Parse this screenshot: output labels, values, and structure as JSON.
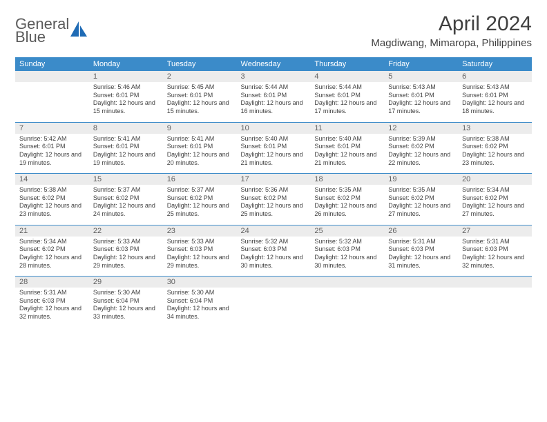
{
  "brand": {
    "line1": "General",
    "line2": "Blue"
  },
  "title": "April 2024",
  "location": "Magdiwang, Mimaropa, Philippines",
  "colors": {
    "header_bg": "#3b8bc9",
    "header_text": "#ffffff",
    "daynum_bg": "#ececec",
    "text": "#404040",
    "rule": "#3b8bc9"
  },
  "weekdays": [
    "Sunday",
    "Monday",
    "Tuesday",
    "Wednesday",
    "Thursday",
    "Friday",
    "Saturday"
  ],
  "weeks": [
    [
      {
        "n": "",
        "lines": [
          "",
          "",
          ""
        ]
      },
      {
        "n": "1",
        "lines": [
          "Sunrise: 5:46 AM",
          "Sunset: 6:01 PM",
          "Daylight: 12 hours and 15 minutes."
        ]
      },
      {
        "n": "2",
        "lines": [
          "Sunrise: 5:45 AM",
          "Sunset: 6:01 PM",
          "Daylight: 12 hours and 15 minutes."
        ]
      },
      {
        "n": "3",
        "lines": [
          "Sunrise: 5:44 AM",
          "Sunset: 6:01 PM",
          "Daylight: 12 hours and 16 minutes."
        ]
      },
      {
        "n": "4",
        "lines": [
          "Sunrise: 5:44 AM",
          "Sunset: 6:01 PM",
          "Daylight: 12 hours and 17 minutes."
        ]
      },
      {
        "n": "5",
        "lines": [
          "Sunrise: 5:43 AM",
          "Sunset: 6:01 PM",
          "Daylight: 12 hours and 17 minutes."
        ]
      },
      {
        "n": "6",
        "lines": [
          "Sunrise: 5:43 AM",
          "Sunset: 6:01 PM",
          "Daylight: 12 hours and 18 minutes."
        ]
      }
    ],
    [
      {
        "n": "7",
        "lines": [
          "Sunrise: 5:42 AM",
          "Sunset: 6:01 PM",
          "Daylight: 12 hours and 19 minutes."
        ]
      },
      {
        "n": "8",
        "lines": [
          "Sunrise: 5:41 AM",
          "Sunset: 6:01 PM",
          "Daylight: 12 hours and 19 minutes."
        ]
      },
      {
        "n": "9",
        "lines": [
          "Sunrise: 5:41 AM",
          "Sunset: 6:01 PM",
          "Daylight: 12 hours and 20 minutes."
        ]
      },
      {
        "n": "10",
        "lines": [
          "Sunrise: 5:40 AM",
          "Sunset: 6:01 PM",
          "Daylight: 12 hours and 21 minutes."
        ]
      },
      {
        "n": "11",
        "lines": [
          "Sunrise: 5:40 AM",
          "Sunset: 6:01 PM",
          "Daylight: 12 hours and 21 minutes."
        ]
      },
      {
        "n": "12",
        "lines": [
          "Sunrise: 5:39 AM",
          "Sunset: 6:02 PM",
          "Daylight: 12 hours and 22 minutes."
        ]
      },
      {
        "n": "13",
        "lines": [
          "Sunrise: 5:38 AM",
          "Sunset: 6:02 PM",
          "Daylight: 12 hours and 23 minutes."
        ]
      }
    ],
    [
      {
        "n": "14",
        "lines": [
          "Sunrise: 5:38 AM",
          "Sunset: 6:02 PM",
          "Daylight: 12 hours and 23 minutes."
        ]
      },
      {
        "n": "15",
        "lines": [
          "Sunrise: 5:37 AM",
          "Sunset: 6:02 PM",
          "Daylight: 12 hours and 24 minutes."
        ]
      },
      {
        "n": "16",
        "lines": [
          "Sunrise: 5:37 AM",
          "Sunset: 6:02 PM",
          "Daylight: 12 hours and 25 minutes."
        ]
      },
      {
        "n": "17",
        "lines": [
          "Sunrise: 5:36 AM",
          "Sunset: 6:02 PM",
          "Daylight: 12 hours and 25 minutes."
        ]
      },
      {
        "n": "18",
        "lines": [
          "Sunrise: 5:35 AM",
          "Sunset: 6:02 PM",
          "Daylight: 12 hours and 26 minutes."
        ]
      },
      {
        "n": "19",
        "lines": [
          "Sunrise: 5:35 AM",
          "Sunset: 6:02 PM",
          "Daylight: 12 hours and 27 minutes."
        ]
      },
      {
        "n": "20",
        "lines": [
          "Sunrise: 5:34 AM",
          "Sunset: 6:02 PM",
          "Daylight: 12 hours and 27 minutes."
        ]
      }
    ],
    [
      {
        "n": "21",
        "lines": [
          "Sunrise: 5:34 AM",
          "Sunset: 6:02 PM",
          "Daylight: 12 hours and 28 minutes."
        ]
      },
      {
        "n": "22",
        "lines": [
          "Sunrise: 5:33 AM",
          "Sunset: 6:03 PM",
          "Daylight: 12 hours and 29 minutes."
        ]
      },
      {
        "n": "23",
        "lines": [
          "Sunrise: 5:33 AM",
          "Sunset: 6:03 PM",
          "Daylight: 12 hours and 29 minutes."
        ]
      },
      {
        "n": "24",
        "lines": [
          "Sunrise: 5:32 AM",
          "Sunset: 6:03 PM",
          "Daylight: 12 hours and 30 minutes."
        ]
      },
      {
        "n": "25",
        "lines": [
          "Sunrise: 5:32 AM",
          "Sunset: 6:03 PM",
          "Daylight: 12 hours and 30 minutes."
        ]
      },
      {
        "n": "26",
        "lines": [
          "Sunrise: 5:31 AM",
          "Sunset: 6:03 PM",
          "Daylight: 12 hours and 31 minutes."
        ]
      },
      {
        "n": "27",
        "lines": [
          "Sunrise: 5:31 AM",
          "Sunset: 6:03 PM",
          "Daylight: 12 hours and 32 minutes."
        ]
      }
    ],
    [
      {
        "n": "28",
        "lines": [
          "Sunrise: 5:31 AM",
          "Sunset: 6:03 PM",
          "Daylight: 12 hours and 32 minutes."
        ]
      },
      {
        "n": "29",
        "lines": [
          "Sunrise: 5:30 AM",
          "Sunset: 6:04 PM",
          "Daylight: 12 hours and 33 minutes."
        ]
      },
      {
        "n": "30",
        "lines": [
          "Sunrise: 5:30 AM",
          "Sunset: 6:04 PM",
          "Daylight: 12 hours and 34 minutes."
        ]
      },
      {
        "n": "",
        "lines": [
          "",
          "",
          ""
        ]
      },
      {
        "n": "",
        "lines": [
          "",
          "",
          ""
        ]
      },
      {
        "n": "",
        "lines": [
          "",
          "",
          ""
        ]
      },
      {
        "n": "",
        "lines": [
          "",
          "",
          ""
        ]
      }
    ]
  ]
}
